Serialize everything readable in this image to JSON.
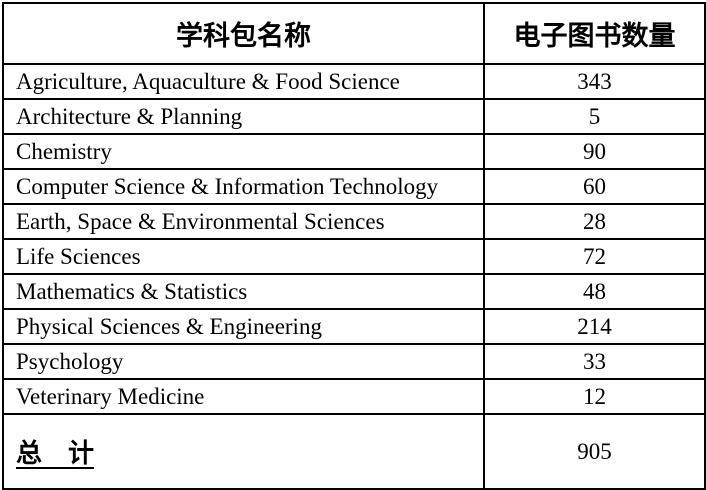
{
  "table": {
    "col1_header": "学科包名称",
    "col2_header": "电子图书数量",
    "rows": [
      {
        "name": "Agriculture, Aquaculture & Food Science",
        "count": 343
      },
      {
        "name": "Architecture & Planning",
        "count": 5
      },
      {
        "name": "Chemistry",
        "count": 90
      },
      {
        "name": "Computer Science & Information Technology",
        "count": 60
      },
      {
        "name": "Earth, Space & Environmental Sciences",
        "count": 28
      },
      {
        "name": "Life Sciences",
        "count": 72
      },
      {
        "name": "Mathematics & Statistics",
        "count": 48
      },
      {
        "name": "Physical Sciences & Engineering",
        "count": 214
      },
      {
        "name": "Psychology",
        "count": 33
      },
      {
        "name": "Veterinary Medicine",
        "count": 12
      }
    ],
    "total": {
      "label": "总　计",
      "value": 905
    }
  },
  "chart_data": {
    "type": "table",
    "columns": [
      "学科包名称",
      "电子图书数量"
    ],
    "categories": [
      "Agriculture, Aquaculture & Food Science",
      "Architecture & Planning",
      "Chemistry",
      "Computer Science & Information Technology",
      "Earth, Space & Environmental Sciences",
      "Life Sciences",
      "Mathematics & Statistics",
      "Physical Sciences & Engineering",
      "Psychology",
      "Veterinary Medicine"
    ],
    "values": [
      343,
      5,
      90,
      60,
      28,
      72,
      48,
      214,
      33,
      12
    ],
    "total": 905
  }
}
